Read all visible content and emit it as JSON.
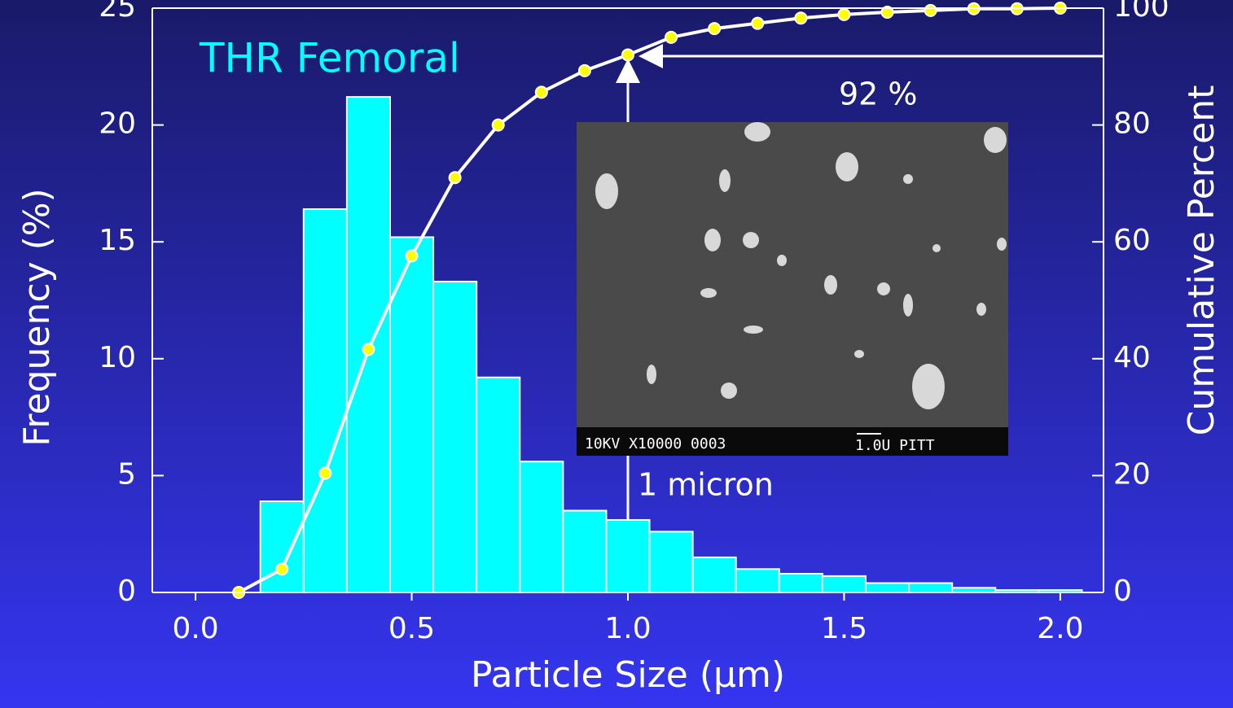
{
  "chart_data": {
    "type": "histogram",
    "annotations": [
      "THR Femoral",
      "92 %",
      "1 micron",
      "10KV X10000 0003",
      "1.0U PITT"
    ],
    "xlabel": "Particle Size (µm)",
    "ylabel": "Frequency (%)",
    "y2label": "Cumulative Percent",
    "bins": [
      0.15,
      0.25,
      0.35,
      0.45,
      0.55,
      0.65,
      0.75,
      0.85,
      0.95,
      1.05,
      1.15,
      1.25,
      1.35,
      1.45,
      1.55,
      1.65,
      1.75,
      1.85,
      1.95,
      2.05
    ],
    "values": [
      3.9,
      16.4,
      21.2,
      15.2,
      13.3,
      9.2,
      5.6,
      3.5,
      3.1,
      2.6,
      1.5,
      1.0,
      0.8,
      0.7,
      0.4,
      0.4,
      0.2,
      0.1,
      0.1
    ],
    "color": "#00ffff",
    "cumulative": {
      "axis": "y2",
      "color": "#ffffff",
      "marker_color": "#ffff00",
      "x": [
        0.1,
        0.2,
        0.3,
        0.4,
        0.5,
        0.6,
        0.7,
        0.8,
        0.9,
        1.0,
        1.1,
        1.2,
        1.3,
        1.4,
        1.5,
        1.6,
        1.7,
        1.8,
        1.9,
        2.0
      ],
      "values": [
        0,
        4,
        20.4,
        41.6,
        57.6,
        71,
        80,
        85.6,
        89.3,
        92,
        95,
        96.5,
        97.4,
        98.3,
        98.9,
        99.3,
        99.6,
        99.9,
        99.9,
        100
      ]
    },
    "xlim": [
      -0.1,
      2.1
    ],
    "xticks": [
      {
        "value": 0,
        "label": "0.0"
      },
      {
        "value": 0.5,
        "label": "0.5"
      },
      {
        "value": 1,
        "label": "1.0"
      },
      {
        "value": 1.5,
        "label": "1.5"
      },
      {
        "value": 2,
        "label": "2.0"
      }
    ],
    "ylim": [
      0,
      25
    ],
    "yticks": [
      0,
      5,
      10,
      15,
      20,
      25
    ],
    "y2lim": [
      0,
      100
    ],
    "y2ticks": [
      0,
      20,
      40,
      60,
      80,
      100
    ]
  }
}
